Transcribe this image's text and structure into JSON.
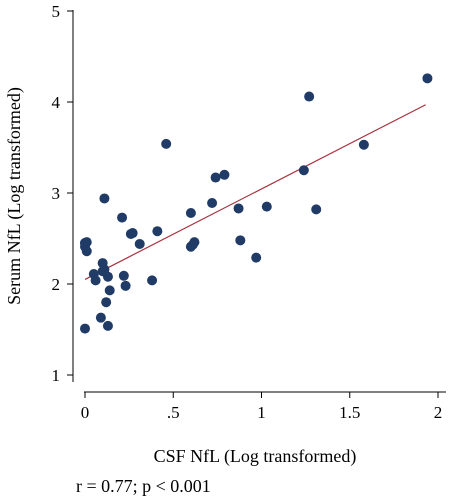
{
  "chart_data": {
    "type": "scatter",
    "xlabel": "CSF NfL (Log transformed)",
    "ylabel": "Serum NfL (Log transformed)",
    "annotation": "r = 0.77; p < 0.001",
    "xlim": [
      -0.05,
      2.05
    ],
    "ylim": [
      0.75,
      5.15
    ],
    "x_ticks": [
      0,
      0.5,
      1,
      1.5,
      2
    ],
    "x_tick_labels": [
      "0",
      ".5",
      "1",
      "1.5",
      "2"
    ],
    "y_ticks": [
      1,
      2,
      3,
      4,
      5
    ],
    "y_tick_labels": [
      "1",
      "2",
      "3",
      "4",
      "5"
    ],
    "grid": false,
    "point_color": "#1f3b66",
    "fit_color": "#a8323e",
    "fit_line": {
      "x": [
        0.0,
        1.93
      ],
      "y": [
        2.05,
        3.97
      ]
    },
    "series": [
      {
        "x": [
          0.0,
          0.0,
          0.01,
          0.0,
          0.01,
          0.0,
          0.05,
          0.06,
          0.1,
          0.11,
          0.11,
          0.13,
          0.14,
          0.09,
          0.13,
          0.1,
          0.12,
          0.21,
          0.22,
          0.23,
          0.26,
          0.27,
          0.31,
          0.38,
          0.41,
          0.46,
          0.6,
          0.6,
          0.62,
          0.61,
          0.72,
          0.74,
          0.79,
          0.87,
          0.88,
          0.97,
          1.03,
          1.24,
          1.27,
          1.31,
          1.58,
          1.94
        ],
        "y": [
          1.51,
          2.41,
          2.46,
          2.45,
          2.36,
          2.45,
          2.11,
          2.04,
          2.23,
          2.94,
          2.16,
          2.08,
          1.93,
          1.63,
          1.54,
          2.14,
          1.8,
          2.73,
          2.09,
          1.98,
          2.55,
          2.56,
          2.44,
          2.04,
          2.58,
          3.54,
          2.78,
          2.41,
          2.46,
          2.43,
          2.89,
          3.17,
          3.2,
          2.83,
          2.48,
          2.29,
          2.85,
          3.25,
          4.06,
          2.82,
          3.53,
          4.26
        ]
      }
    ]
  }
}
